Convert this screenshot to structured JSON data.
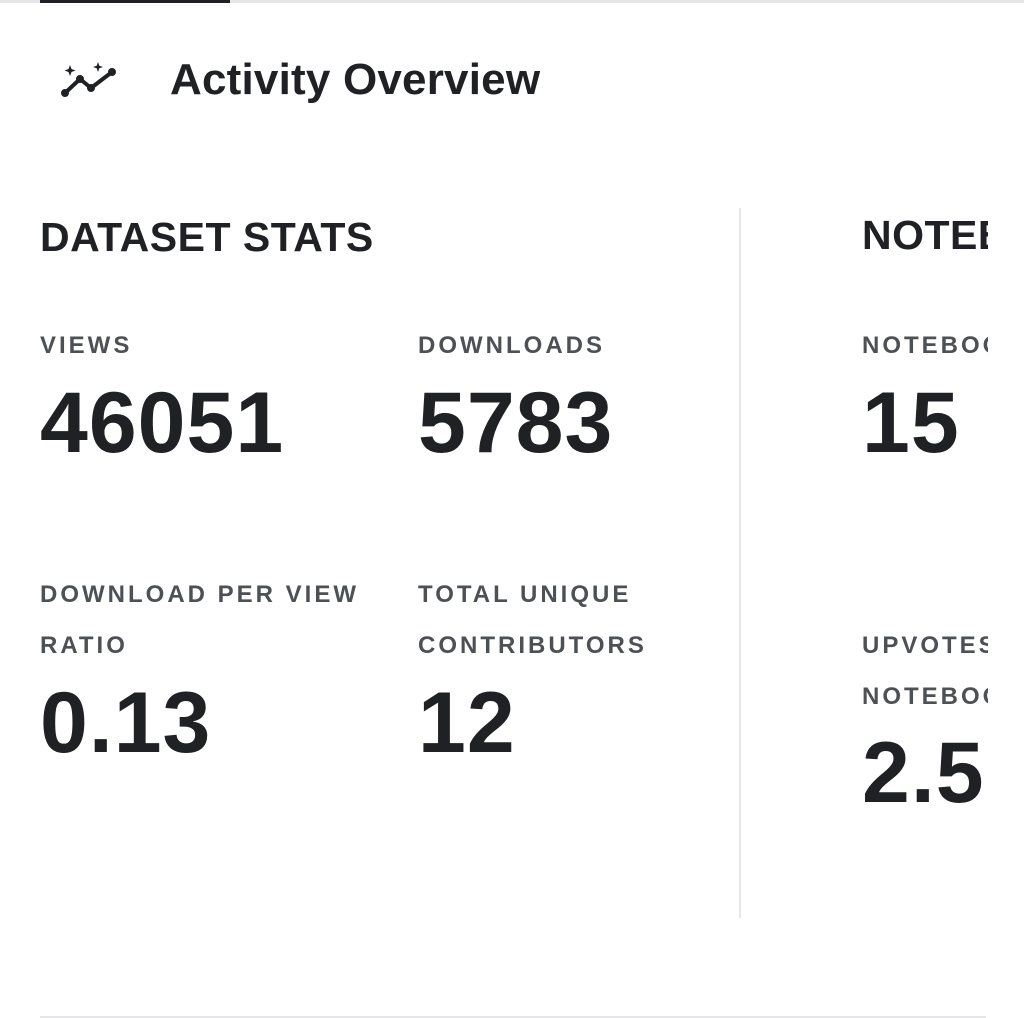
{
  "header": {
    "title": "Activity Overview",
    "icon": "sparkle-trend-icon"
  },
  "dataset_stats": {
    "title": "DATASET STATS",
    "views": {
      "label": "VIEWS",
      "value": "46051"
    },
    "downloads": {
      "label": "DOWNLOADS",
      "value": "5783"
    },
    "download_ratio": {
      "label_line1": "DOWNLOAD PER VIEW",
      "label_line2": "RATIO",
      "value": "0.13"
    },
    "contributors": {
      "label_line1": "TOTAL UNIQUE",
      "label_line2": "CONTRIBUTORS",
      "value": "12"
    }
  },
  "notebook_stats": {
    "title": "NOTEBOOK STATS",
    "notebooks": {
      "label": "NOTEBOOKS",
      "value": "15"
    },
    "upvotes": {
      "label_line1": "UPVOTES",
      "label_line2": "NOTEBOOKS",
      "value": "2.5"
    }
  },
  "colors": {
    "text": "#202124",
    "label": "#4d5156",
    "divider": "#e6e6e9"
  }
}
